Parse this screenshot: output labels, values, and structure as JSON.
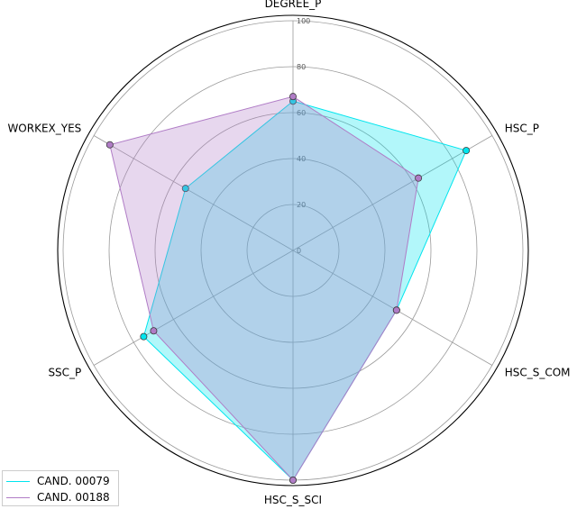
{
  "chart_data": {
    "type": "radar",
    "axes": [
      "DEGREE_P",
      "HSC_P",
      "HSC_S_COM",
      "HSC_S_SCI",
      "SSC_P",
      "WORKEX_YES"
    ],
    "rlim": [
      0,
      100
    ],
    "rticks": [
      "0",
      "20",
      "40",
      "60",
      "80",
      "100"
    ],
    "grid": true,
    "legend_position": "bottom-left",
    "series": [
      {
        "name": "CAND. 00079",
        "color": "#00e5ee",
        "values": [
          65,
          87,
          52,
          100,
          75,
          54
        ]
      },
      {
        "name": "CAND. 00188",
        "color": "#b07cc6",
        "values": [
          67,
          63,
          52,
          100,
          70,
          92
        ]
      }
    ]
  }
}
